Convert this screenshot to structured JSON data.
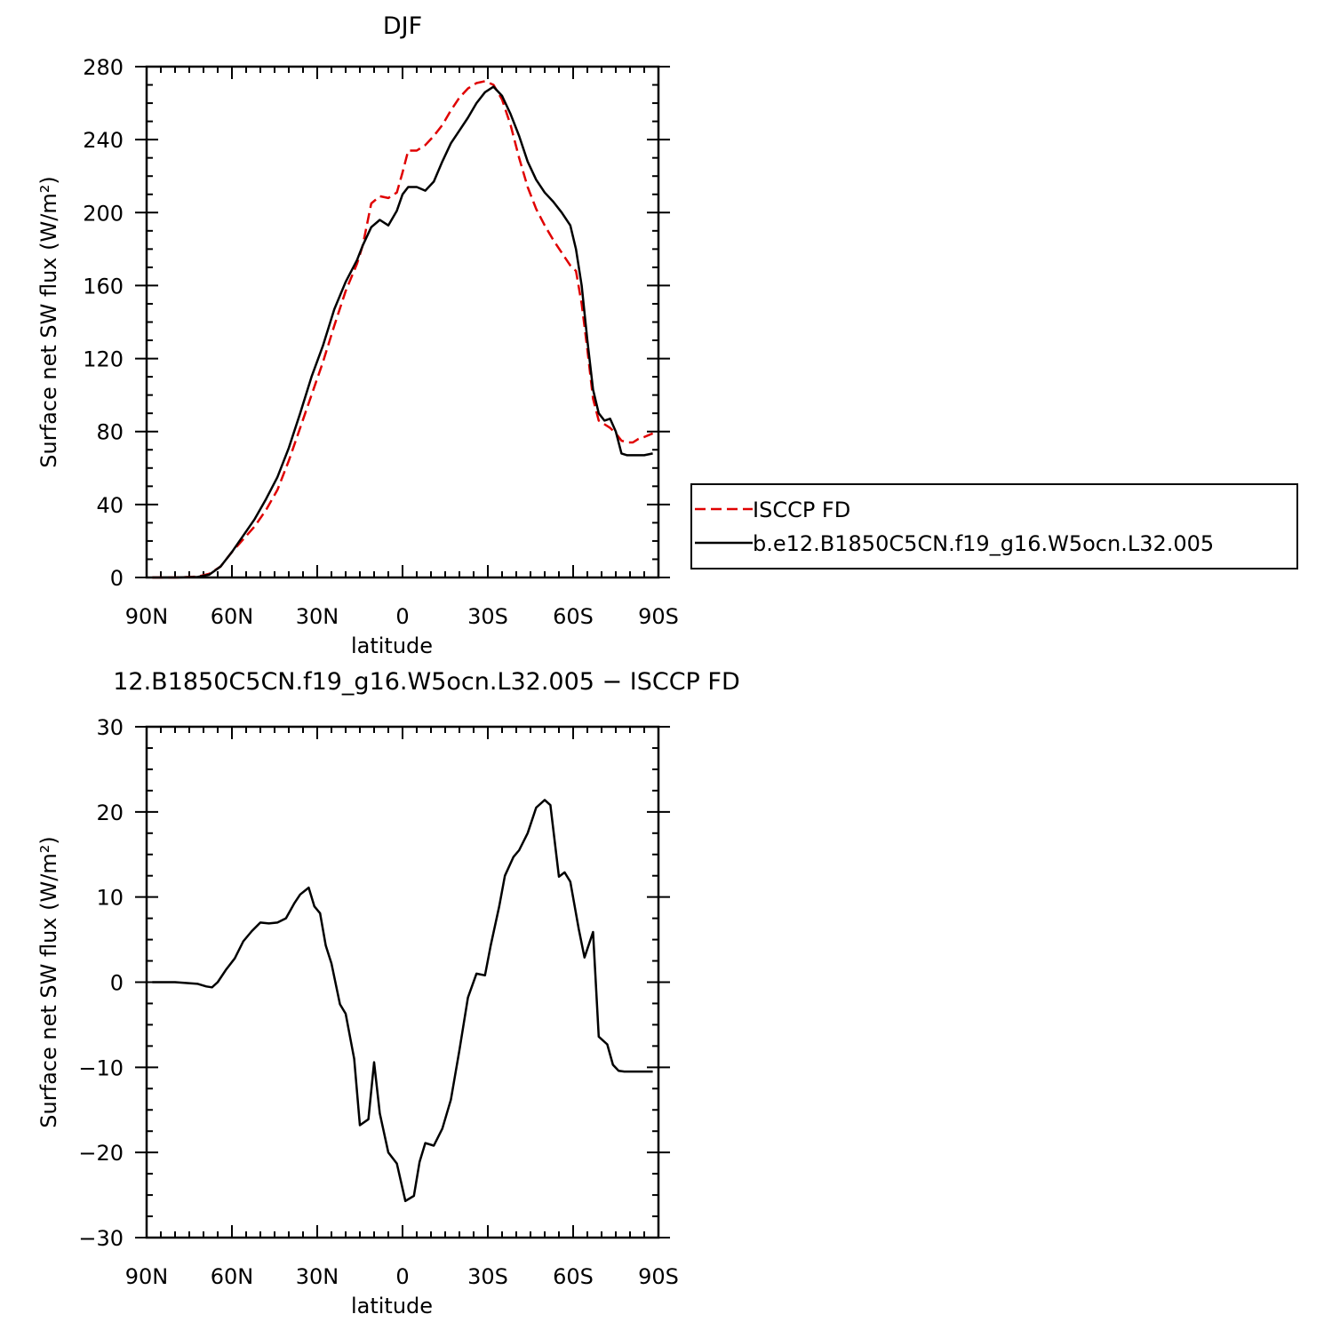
{
  "colors": {
    "obs": "#e00000",
    "model": "#000000",
    "axes": "#000000"
  },
  "chart_data": [
    {
      "type": "line",
      "title": "DJF",
      "xlabel": "latitude",
      "ylabel": "Surface net SW flux (W/m²)",
      "xlim": [
        -90,
        90
      ],
      "ylim": [
        0,
        280
      ],
      "xticks": [
        {
          "v": -90,
          "label": "90N"
        },
        {
          "v": -60,
          "label": "60N"
        },
        {
          "v": -30,
          "label": "30N"
        },
        {
          "v": 0,
          "label": "0"
        },
        {
          "v": 30,
          "label": "30S"
        },
        {
          "v": 60,
          "label": "60S"
        },
        {
          "v": 90,
          "label": "90S"
        }
      ],
      "yticks": [
        0,
        40,
        80,
        120,
        160,
        200,
        240,
        280
      ],
      "legend_position": "right",
      "series": [
        {
          "name": "ISCCP FD",
          "style": "dashed",
          "color": "#e00000",
          "x": [
            -88,
            -80,
            -72,
            -68,
            -64,
            -60,
            -56,
            -52,
            -48,
            -44,
            -40,
            -36,
            -32,
            -28,
            -24,
            -20,
            -16,
            -14,
            -11,
            -8,
            -5,
            -2,
            0,
            2,
            5,
            8,
            11,
            14,
            17,
            20,
            23,
            26,
            29,
            32,
            35,
            38,
            41,
            44,
            47,
            50,
            53,
            56,
            59,
            61,
            63,
            65,
            67,
            69,
            71,
            73,
            75,
            77,
            79,
            81,
            83,
            85,
            88
          ],
          "y": [
            0,
            0,
            0.5,
            2,
            6,
            14,
            21,
            28,
            37,
            48,
            64,
            82,
            100,
            118,
            138,
            157,
            172,
            182,
            205,
            209,
            208,
            211,
            222,
            234,
            234,
            237,
            242,
            248,
            256,
            263,
            268,
            271,
            272,
            270,
            262,
            248,
            230,
            214,
            202,
            193,
            185,
            178,
            171,
            168,
            150,
            125,
            98,
            86,
            84,
            82,
            79,
            75,
            74,
            74,
            76,
            77,
            79
          ]
        },
        {
          "name": "b.e12.B1850C5CN.f19_g16.W5ocn.L32.005",
          "style": "solid",
          "color": "#000000",
          "x": [
            -88,
            -80,
            -72,
            -68,
            -64,
            -60,
            -56,
            -52,
            -48,
            -44,
            -40,
            -36,
            -32,
            -28,
            -24,
            -20,
            -16,
            -14,
            -11,
            -8,
            -5,
            -2,
            0,
            2,
            5,
            8,
            11,
            14,
            17,
            20,
            23,
            26,
            29,
            32,
            35,
            38,
            41,
            44,
            47,
            50,
            53,
            56,
            59,
            61,
            63,
            65,
            67,
            69,
            71,
            73,
            75,
            77,
            79,
            81,
            83,
            85,
            88
          ],
          "y": [
            0,
            0,
            0.3,
            1.5,
            6,
            14,
            23,
            32,
            43,
            55,
            71,
            90,
            110,
            127,
            147,
            162,
            174,
            182,
            192,
            196,
            193,
            201,
            210,
            214,
            214,
            212,
            217,
            228,
            238,
            245,
            252,
            260,
            266,
            269,
            264,
            254,
            242,
            228,
            218,
            211,
            206,
            200,
            193,
            180,
            160,
            130,
            103,
            90,
            86,
            87,
            80,
            68,
            67,
            67,
            67,
            67,
            68
          ]
        }
      ]
    },
    {
      "type": "line",
      "title": "12.B1850C5CN.f19_g16.W5ocn.L32.005 − ISCCP FD",
      "xlabel": "latitude",
      "ylabel": "Surface net SW flux (W/m²)",
      "xlim": [
        -90,
        90
      ],
      "ylim": [
        -30,
        30
      ],
      "xticks": [
        {
          "v": -90,
          "label": "90N"
        },
        {
          "v": -60,
          "label": "60N"
        },
        {
          "v": -30,
          "label": "30N"
        },
        {
          "v": 0,
          "label": "0"
        },
        {
          "v": 30,
          "label": "30S"
        },
        {
          "v": 60,
          "label": "60S"
        },
        {
          "v": 90,
          "label": "90S"
        }
      ],
      "yticks": [
        {
          "v": -30,
          "label": "−30"
        },
        {
          "v": -20,
          "label": "−20"
        },
        {
          "v": -10,
          "label": "−10"
        },
        {
          "v": 0,
          "label": "0"
        },
        {
          "v": 10,
          "label": "10"
        },
        {
          "v": 20,
          "label": "20"
        },
        {
          "v": 30,
          "label": "30"
        }
      ],
      "series": [
        {
          "style": "solid",
          "color": "#000000",
          "x": [
            -88,
            -80,
            -72,
            -69,
            -67,
            -65,
            -62,
            -59,
            -56,
            -53,
            -50,
            -47,
            -44,
            -41,
            -38,
            -36,
            -33,
            -31,
            -29,
            -27,
            -25,
            -22,
            -20,
            -17,
            -15,
            -12,
            -10,
            -8,
            -5,
            -2,
            1,
            4,
            6,
            8,
            11,
            14,
            17,
            20,
            23,
            26,
            29,
            31,
            34,
            36,
            39,
            41,
            44,
            47,
            50,
            52,
            55,
            57,
            59,
            62,
            64,
            67,
            69,
            72,
            74,
            76,
            78,
            80,
            82,
            84,
            86,
            88
          ],
          "y": [
            0,
            0,
            -0.2,
            -0.5,
            -0.6,
            0,
            1.5,
            2.8,
            4.8,
            6,
            7,
            6.9,
            7,
            7.5,
            9.3,
            10.3,
            11.1,
            8.9,
            8.1,
            4.3,
            2.2,
            -2.6,
            -3.7,
            -9,
            -16.8,
            -16.1,
            -9.4,
            -15.4,
            -20,
            -21.3,
            -25.7,
            -25.1,
            -21.1,
            -18.9,
            -19.2,
            -17.2,
            -13.8,
            -8,
            -1.8,
            1,
            0.8,
            4.3,
            8.9,
            12.5,
            14.7,
            15.5,
            17.5,
            20.5,
            21.4,
            20.8,
            12.4,
            12.9,
            11.8,
            6.2,
            2.9,
            5.9,
            -6.4,
            -7.3,
            -9.7,
            -10.4,
            -10.5,
            -10.5,
            -10.5,
            -10.5,
            -10.5,
            -10.5
          ]
        }
      ]
    }
  ]
}
